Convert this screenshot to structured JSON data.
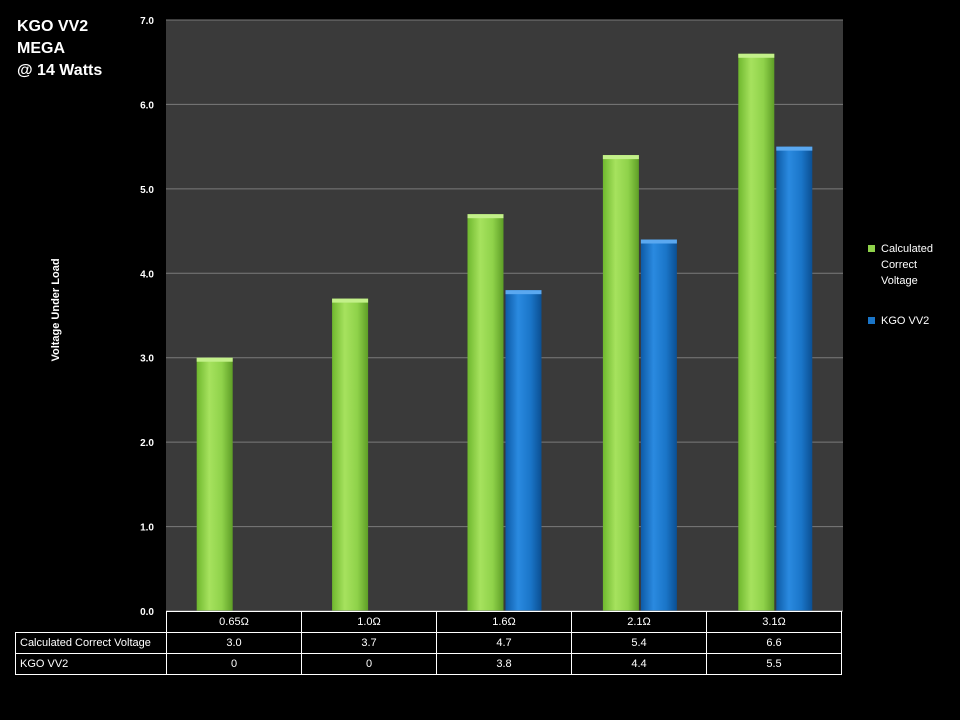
{
  "title_lines": [
    "KGO VV2",
    "MEGA",
    "@ 14 Watts"
  ],
  "colors": {
    "calculated": "#8fd24a",
    "kgo": "#1a75c8",
    "plot_bg": "#3a3a3a",
    "grid": "#7a7a7a"
  },
  "chart_data": {
    "type": "bar",
    "title": "KGO VV2 MEGA @ 14 Watts",
    "xlabel": "",
    "ylabel": "Voltage Under Load",
    "categories": [
      "0.65Ω",
      "1.0Ω",
      "1.6Ω",
      "2.1Ω",
      "3.1Ω"
    ],
    "series": [
      {
        "name": "Calculated Correct Voltage",
        "legend_label": "Calculated Correct Voltage",
        "values": [
          3.0,
          3.7,
          4.7,
          5.4,
          6.6
        ]
      },
      {
        "name": "KGO VV2",
        "legend_label": "KGO VV2",
        "values": [
          0,
          0,
          3.8,
          4.4,
          5.5
        ]
      }
    ],
    "ylim": [
      0,
      7
    ],
    "yticks": [
      "0.0",
      "1.0",
      "2.0",
      "3.0",
      "4.0",
      "5.0",
      "6.0",
      "7.0"
    ],
    "grid": true,
    "legend_position": "right",
    "table": {
      "rows": [
        {
          "label": "Calculated Correct Voltage",
          "cells": [
            "3.0",
            "3.7",
            "4.7",
            "5.4",
            "6.6"
          ]
        },
        {
          "label": "KGO VV2",
          "cells": [
            "0",
            "0",
            "3.8",
            "4.4",
            "5.5"
          ]
        }
      ]
    }
  }
}
